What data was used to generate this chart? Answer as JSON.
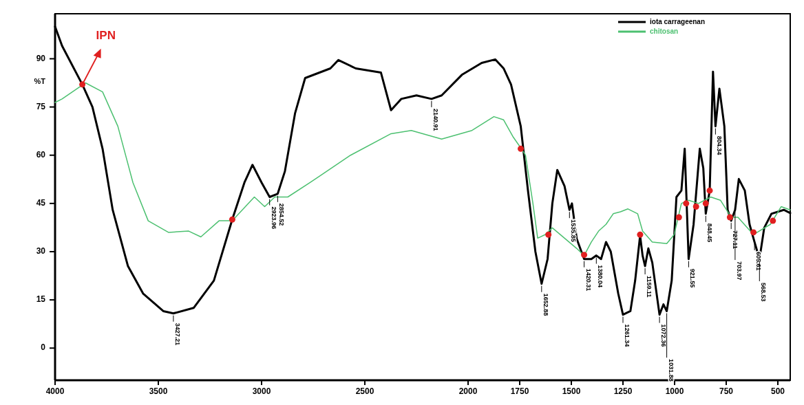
{
  "chart_data": {
    "type": "line",
    "ylabel": "%T",
    "xlim": [
      4000,
      440
    ],
    "xticks": [
      4000,
      3500,
      3000,
      2500,
      2000,
      1750,
      1500,
      1250,
      1000,
      750,
      500
    ],
    "ylim": [
      -10,
      104
    ],
    "yticks": [
      0,
      15,
      30,
      45,
      60,
      75,
      90
    ],
    "grid": false,
    "legend": "top right",
    "marker": "none",
    "series": [
      {
        "name": "iota carrageenan",
        "color": "#000000",
        "x": [
          4000,
          3966,
          3868,
          3819,
          3770,
          3721,
          3647,
          3574,
          3476,
          3427,
          3329,
          3231,
          3142,
          3083,
          3044,
          3000,
          2961,
          2922,
          2887,
          2838,
          2789,
          2667,
          2628,
          2544,
          2422,
          2373,
          2324,
          2250,
          2177,
          2128,
          2030,
          1934,
          1868,
          1828,
          1792,
          1745,
          1710,
          1674,
          1644,
          1615,
          1592,
          1568,
          1533,
          1509,
          1497,
          1474,
          1438,
          1403,
          1379,
          1356,
          1332,
          1309,
          1273,
          1250,
          1214,
          1191,
          1167,
          1155,
          1143,
          1127,
          1108,
          1073,
          1054,
          1038,
          1014,
          991,
          967,
          951,
          932,
          908,
          878,
          861,
          849,
          830,
          814,
          802,
          783,
          759,
          743,
          726,
          707,
          689,
          660,
          637,
          613,
          589,
          566,
          531,
          471,
          440
        ],
        "values": [
          100,
          94,
          82,
          75,
          62,
          43,
          25.5,
          17,
          11.5,
          10.8,
          12.5,
          21,
          40,
          51.5,
          57,
          51.5,
          47,
          48,
          55,
          73,
          84,
          87,
          89.6,
          87,
          85.7,
          74,
          77.5,
          78.6,
          77.5,
          78.6,
          85,
          88.7,
          89.8,
          87,
          82,
          69,
          49,
          30,
          20,
          27.7,
          45,
          55.4,
          50.4,
          43,
          45,
          34,
          27.7,
          27.7,
          28.8,
          27.7,
          33,
          30,
          17,
          10.4,
          11.5,
          21,
          35,
          28.8,
          25.5,
          31,
          26.6,
          10.4,
          13.6,
          11.5,
          21,
          47,
          49,
          62,
          27.7,
          38.5,
          62,
          56,
          41.8,
          49,
          86,
          69,
          80.7,
          69,
          43,
          39.6,
          43,
          52.6,
          49,
          38.5,
          33,
          27.7,
          37.4,
          41.8,
          43,
          42
        ]
      },
      {
        "name": "chitosan",
        "color": "#4cc070",
        "x": [
          4000,
          3966,
          3853,
          3770,
          3696,
          3623,
          3549,
          3451,
          3353,
          3294,
          3206,
          3142,
          3035,
          2985,
          2936,
          2873,
          2765,
          2569,
          2373,
          2275,
          2128,
          1981,
          1875,
          1828,
          1781,
          1745,
          1722,
          1686,
          1663,
          1627,
          1592,
          1533,
          1474,
          1438,
          1403,
          1368,
          1332,
          1297,
          1262,
          1226,
          1179,
          1155,
          1108,
          1038,
          1002,
          967,
          932,
          884,
          825,
          778,
          726,
          693,
          618,
          536,
          484,
          440
        ],
        "values": [
          76.4,
          77.5,
          82.5,
          79.7,
          69,
          51.5,
          39.6,
          36,
          36.4,
          34.6,
          39.6,
          39.6,
          47,
          44,
          47,
          47,
          51.5,
          60,
          66.7,
          67.7,
          65,
          67.7,
          72,
          71,
          65.6,
          62.3,
          60,
          45,
          34.2,
          35.3,
          37.4,
          34.2,
          31,
          28.8,
          33,
          36.4,
          38.5,
          41.8,
          42.4,
          43.3,
          41.8,
          36.4,
          33,
          32.5,
          35.3,
          45,
          46,
          45,
          47,
          46,
          40.7,
          40.7,
          35.3,
          38.5,
          44,
          43
        ]
      },
      {
        "type": "scatter",
        "color": "#e02020",
        "marker": "circle",
        "x": [
          3868,
          3142,
          1745,
          1611,
          1438,
          1167,
          979,
          944,
          896,
          849,
          830,
          732,
          618,
          524
        ],
        "values": [
          82,
          40,
          62,
          35.3,
          29,
          35.3,
          40.7,
          45,
          44,
          45,
          49,
          40.7,
          36,
          39.6
        ]
      }
    ],
    "annotations": [
      {
        "text": "IPN",
        "x": 3868,
        "y": 82
      },
      {
        "text": "3427.21",
        "x": 3427,
        "y": 10.8
      },
      {
        "text": "2923.96",
        "x": 2961,
        "y": 47
      },
      {
        "text": "2854.52",
        "x": 2922,
        "y": 48
      },
      {
        "text": "2140.91",
        "x": 2177,
        "y": 77.5
      },
      {
        "text": "1652.88",
        "x": 1644,
        "y": 20
      },
      {
        "text": "1535.85",
        "x": 1509,
        "y": 43
      },
      {
        "text": "1420.31",
        "x": 1438,
        "y": 27.7
      },
      {
        "text": "1380.04",
        "x": 1379,
        "y": 28.8
      },
      {
        "text": "1261.34",
        "x": 1250,
        "y": 10.4
      },
      {
        "text": "1159.11",
        "x": 1143,
        "y": 25.5
      },
      {
        "text": "1072.36",
        "x": 1073,
        "y": 10.4
      },
      {
        "text": "1031.88",
        "x": 1038,
        "y": 11.5
      },
      {
        "text": "921.55",
        "x": 932,
        "y": 27.7
      },
      {
        "text": "848.45",
        "x": 849,
        "y": 41.8
      },
      {
        "text": "804.34",
        "x": 802,
        "y": 69
      },
      {
        "text": "727.11",
        "x": 726,
        "y": 39.6
      },
      {
        "text": "703.97",
        "x": 707,
        "y": 43
      },
      {
        "text": "605.61",
        "x": 613,
        "y": 33
      },
      {
        "text": "568.53",
        "x": 589,
        "y": 27.7
      }
    ]
  }
}
